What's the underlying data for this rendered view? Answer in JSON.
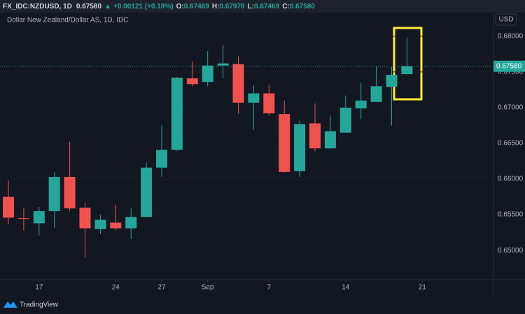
{
  "header": {
    "symbol": "FX_IDC:NZDUSD, 1D",
    "last": "0.67580",
    "arrow": "▲",
    "change": "+0.00121 (+0.18%)",
    "ohlc": [
      {
        "key": "O:",
        "value": "0.67469"
      },
      {
        "key": "H:",
        "value": "0.67978"
      },
      {
        "key": "L:",
        "value": "0.67469"
      },
      {
        "key": "C:",
        "value": "0.67580"
      }
    ]
  },
  "currency": "USD",
  "brand": "TradingView",
  "chart_data": {
    "type": "candlestick",
    "categories": [
      null,
      null,
      "17",
      null,
      null,
      null,
      null,
      "24",
      null,
      null,
      "27",
      null,
      null,
      "Sep",
      null,
      null,
      null,
      "7",
      null,
      null,
      null,
      null,
      "14",
      null,
      null,
      null,
      null,
      "21"
    ],
    "series": [
      {
        "name": "Dollar New Zealand/Dollar AS, 1D, IDC",
        "up_color": "#26a69a",
        "down_color": "#ef5350",
        "open": [
          0.6575,
          0.6545,
          0.6538,
          0.6555,
          0.6603,
          0.656,
          0.653,
          0.6539,
          0.6531,
          0.6547,
          0.6616,
          0.6641,
          0.6741,
          0.6736,
          0.6759,
          0.6761,
          0.6707,
          0.672,
          0.6691,
          0.6611,
          0.6678,
          0.6643,
          0.6665,
          0.6699,
          0.6708,
          0.6729,
          0.67469,
          null
        ],
        "high": [
          0.6598,
          0.6559,
          0.6561,
          0.661,
          0.6652,
          0.6567,
          0.655,
          0.6564,
          0.6559,
          0.6623,
          0.6675,
          0.6743,
          0.6765,
          0.6779,
          0.6788,
          0.6772,
          0.6731,
          0.6732,
          0.671,
          0.6682,
          0.6706,
          0.6689,
          0.6717,
          0.6735,
          0.6758,
          0.6757,
          0.67978,
          null
        ],
        "low": [
          0.6537,
          0.6528,
          0.6521,
          0.6531,
          0.6555,
          0.649,
          0.6523,
          0.6528,
          0.6516,
          0.6546,
          0.6603,
          0.6639,
          0.673,
          0.673,
          0.6741,
          0.6692,
          0.6669,
          0.6689,
          0.6609,
          0.6603,
          0.6639,
          0.6642,
          0.6665,
          0.6684,
          0.6708,
          0.6675,
          0.67469,
          null
        ],
        "close": [
          0.6546,
          0.6544,
          0.6555,
          0.6603,
          0.6559,
          0.6531,
          0.6543,
          0.6531,
          0.6547,
          0.6616,
          0.6641,
          0.6742,
          0.6733,
          0.6759,
          0.6762,
          0.6707,
          0.672,
          0.6692,
          0.661,
          0.6677,
          0.6643,
          0.6667,
          0.67,
          0.671,
          0.673,
          0.6746,
          0.6758,
          null
        ]
      }
    ],
    "last_price": {
      "value": 0.6758,
      "label": "0.67580"
    },
    "ylim": [
      0.6459,
      0.6841
    ],
    "yticks": [
      {
        "value": 0.65,
        "label": "0.65000"
      },
      {
        "value": 0.655,
        "label": "0.65500"
      },
      {
        "value": 0.66,
        "label": "0.66000"
      },
      {
        "value": 0.665,
        "label": "0.66500"
      },
      {
        "value": 0.67,
        "label": "0.67000"
      },
      {
        "value": 0.675,
        "label": "0.67500"
      },
      {
        "value": 0.68,
        "label": "0.68000"
      }
    ],
    "grid": true
  }
}
